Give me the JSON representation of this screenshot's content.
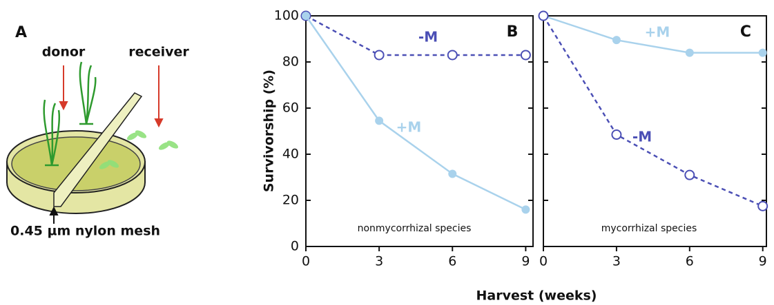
{
  "diagram": {
    "panel": "A",
    "labels": [
      "donor",
      "receiver",
      "0.45 µm nylon mesh"
    ]
  },
  "chart_data": [
    {
      "type": "line",
      "panel": "B",
      "ylabel": "Survivorship (%)",
      "xlabel": "Harvest (weeks)",
      "x": [
        0,
        3,
        6,
        9
      ],
      "xlim": [
        0,
        9.3
      ],
      "xticks": [
        0,
        3,
        6,
        9
      ],
      "ylim": [
        0,
        100
      ],
      "yticks": [
        0,
        20,
        40,
        60,
        80,
        100
      ],
      "series": [
        {
          "name": "-M",
          "color": "#4b4fb5",
          "line_style": "dashed",
          "marker": "open",
          "values": [
            100,
            83,
            83,
            83
          ]
        },
        {
          "name": "+M",
          "color": "#a9d2ec",
          "line_style": "solid",
          "marker": "filled",
          "values": [
            100,
            54.5,
            31.5,
            16
          ]
        }
      ],
      "annotation": "nonmycorrhizal species"
    },
    {
      "type": "line",
      "panel": "C",
      "x": [
        0,
        3,
        6,
        9
      ],
      "xlim": [
        0,
        9.15
      ],
      "xticks": [
        0,
        3,
        6,
        9
      ],
      "ylim": [
        0,
        100
      ],
      "yticks": [
        0,
        20,
        40,
        60,
        80,
        100
      ],
      "series": [
        {
          "name": "+M",
          "color": "#a9d2ec",
          "line_style": "solid",
          "marker": "filled",
          "values": [
            100,
            89.5,
            84,
            84
          ]
        },
        {
          "name": "-M",
          "color": "#4b4fb5",
          "line_style": "dashed",
          "marker": "open",
          "values": [
            100,
            48.5,
            31,
            17.5
          ]
        }
      ],
      "annotation": "mycorrhizal species"
    }
  ]
}
